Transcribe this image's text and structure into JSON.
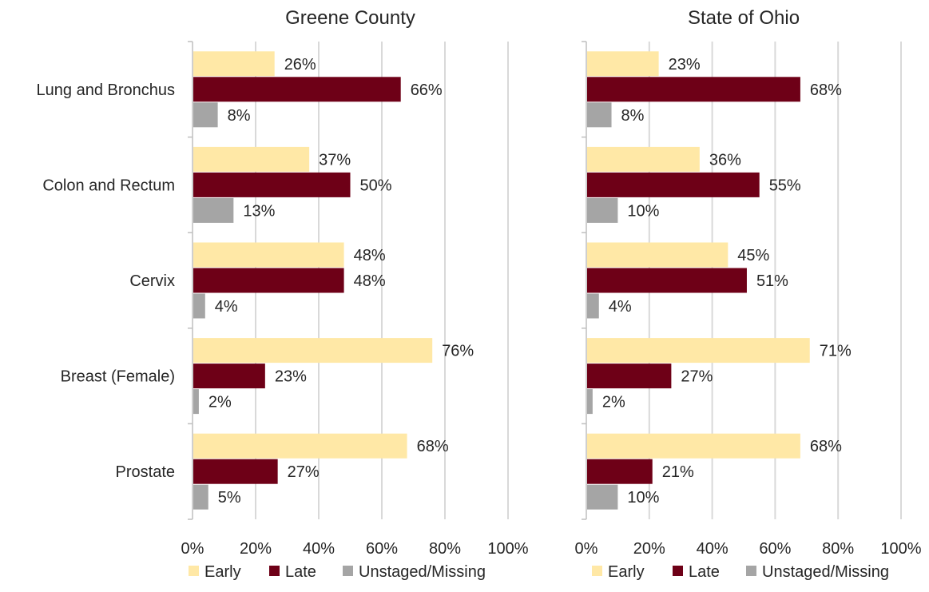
{
  "chart_data": [
    {
      "type": "bar",
      "orientation": "horizontal",
      "title": "Greene County",
      "categories": [
        "Lung and Bronchus",
        "Colon and Rectum",
        "Cervix",
        "Breast (Female)",
        "Prostate"
      ],
      "series": [
        {
          "name": "Early",
          "values": [
            26,
            37,
            48,
            76,
            68
          ],
          "labels": [
            "26%",
            "37%",
            "48%",
            "76%",
            "68%"
          ]
        },
        {
          "name": "Late",
          "values": [
            66,
            50,
            48,
            23,
            27
          ],
          "labels": [
            "66%",
            "50%",
            "48%",
            "23%",
            "27%"
          ]
        },
        {
          "name": "Unstaged/Missing",
          "values": [
            8,
            13,
            4,
            2,
            5
          ],
          "labels": [
            "8%",
            "13%",
            "4%",
            "2%",
            "5%"
          ]
        }
      ],
      "xlim": [
        0,
        100
      ],
      "x_ticks": [
        "0%",
        "20%",
        "40%",
        "60%",
        "80%",
        "100%"
      ],
      "grid": true,
      "legend_position": "bottom"
    },
    {
      "type": "bar",
      "orientation": "horizontal",
      "title": "State of Ohio",
      "categories": [
        "Lung and Bronchus",
        "Colon and Rectum",
        "Cervix",
        "Breast (Female)",
        "Prostate"
      ],
      "series": [
        {
          "name": "Early",
          "values": [
            23,
            36,
            45,
            71,
            68
          ],
          "labels": [
            "23%",
            "36%",
            "45%",
            "71%",
            "68%"
          ]
        },
        {
          "name": "Late",
          "values": [
            68,
            55,
            51,
            27,
            21
          ],
          "labels": [
            "68%",
            "55%",
            "51%",
            "27%",
            "21%"
          ]
        },
        {
          "name": "Unstaged/Missing",
          "values": [
            8,
            10,
            4,
            2,
            10
          ],
          "labels": [
            "8%",
            "10%",
            "4%",
            "2%",
            "10%"
          ]
        }
      ],
      "xlim": [
        0,
        100
      ],
      "x_ticks": [
        "0%",
        "20%",
        "40%",
        "60%",
        "80%",
        "100%"
      ],
      "grid": true,
      "legend_position": "bottom"
    }
  ],
  "colors": {
    "Early": "#FFE8A6",
    "Late": "#6E0017",
    "Unstaged/Missing": "#A5A5A5",
    "grid": "#D9D9D9",
    "axis": "#BFBFBF"
  }
}
